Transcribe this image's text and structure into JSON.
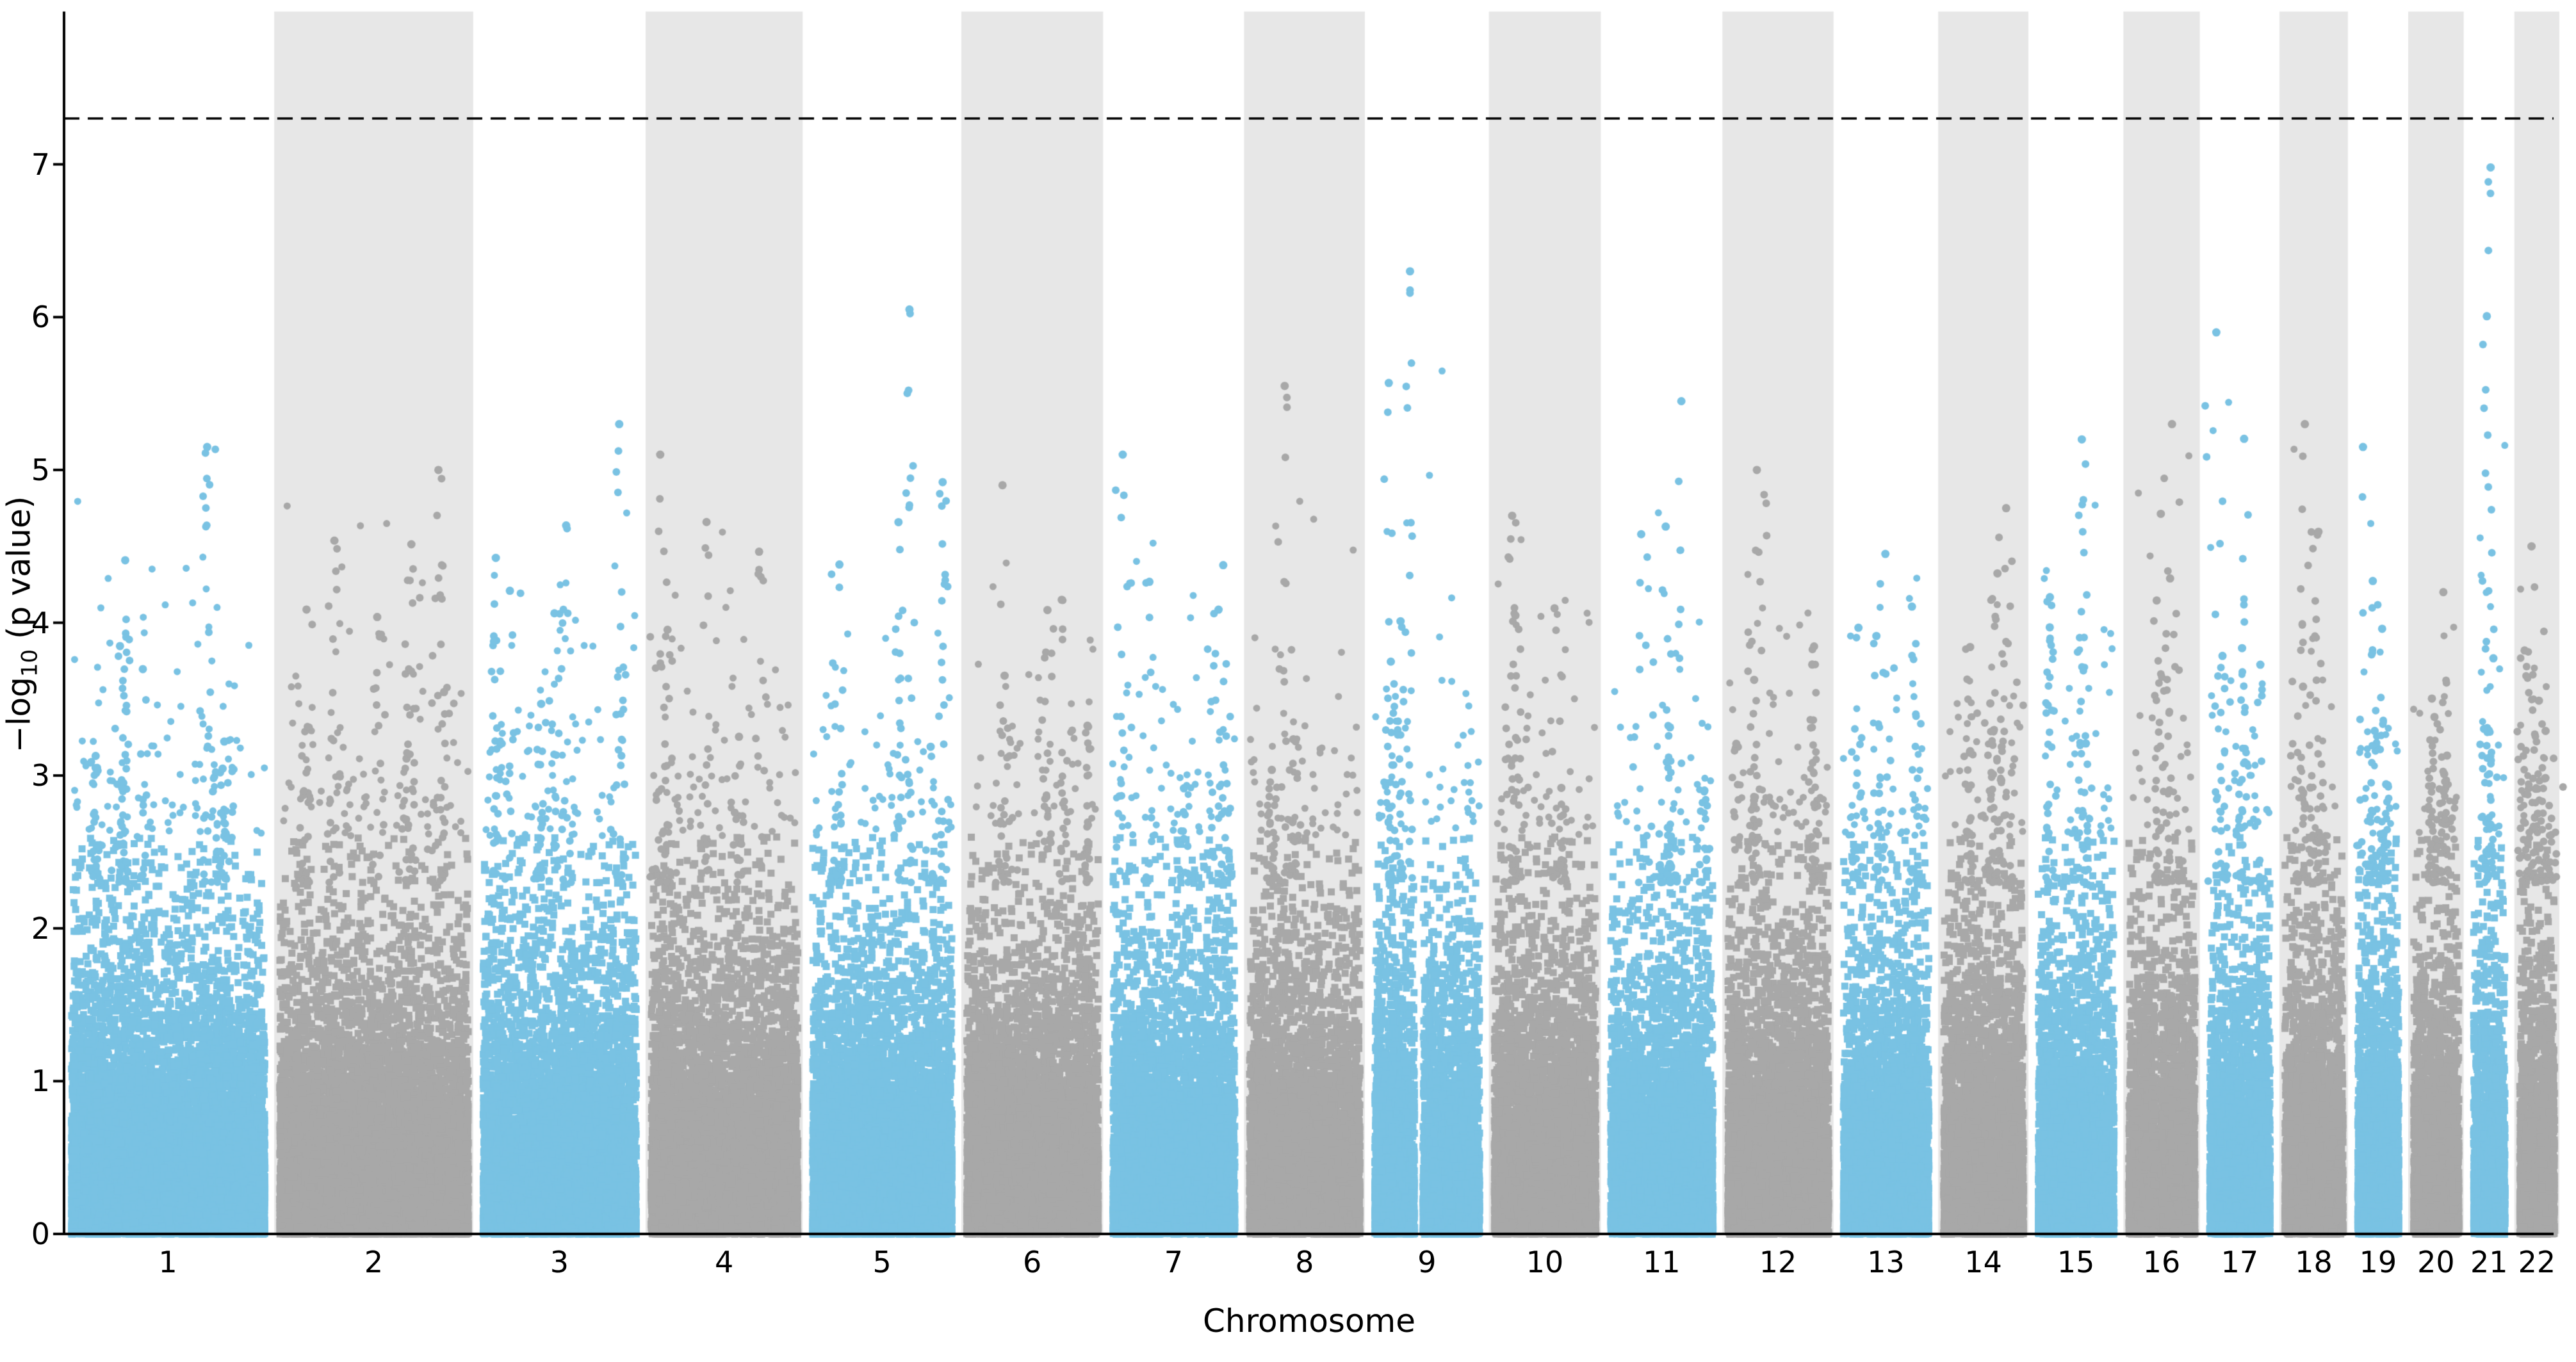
{
  "chart_data": {
    "type": "scatter",
    "variant": "manhattan-plot",
    "title": "",
    "xlabel": "Chromosome",
    "ylabel": "−log10 (p value)",
    "ylabel_parts": {
      "prefix": "−log",
      "sub": "10",
      "suffix": " (p value)"
    },
    "ylim": [
      0,
      8.0
    ],
    "yticks": [
      0,
      1,
      2,
      3,
      4,
      5,
      6,
      7
    ],
    "grid": false,
    "legend": "none",
    "significance_threshold": 7.3,
    "significance_line_style": "dashed",
    "seed": 1337,
    "point_density": 55,
    "tail_bulk_scale": 1.0,
    "tail_heavy_scale": 1.55,
    "tail_heavy_fraction": 0.25,
    "colors": {
      "odd_chromosome_points": "#79c2e3",
      "even_chromosome_points": "#a8a8a8",
      "band": "#e7e7e7",
      "threshold_line": "#000000",
      "axis": "#000000",
      "background": "#ffffff"
    },
    "chromosomes": [
      {
        "label": "1",
        "rel_width": 248,
        "max_neglog10p": 5.15
      },
      {
        "label": "2",
        "rel_width": 242,
        "max_neglog10p": 5.0
      },
      {
        "label": "3",
        "rel_width": 198,
        "max_neglog10p": 5.3
      },
      {
        "label": "4",
        "rel_width": 190,
        "max_neglog10p": 5.1
      },
      {
        "label": "5",
        "rel_width": 181,
        "max_neglog10p": 6.05
      },
      {
        "label": "6",
        "rel_width": 171,
        "max_neglog10p": 4.9
      },
      {
        "label": "7",
        "rel_width": 159,
        "max_neglog10p": 5.1
      },
      {
        "label": "8",
        "rel_width": 145,
        "max_neglog10p": 5.55
      },
      {
        "label": "9",
        "rel_width": 138,
        "max_neglog10p": 6.3,
        "gap": {
          "pos": 0.42,
          "width": 0.08
        }
      },
      {
        "label": "10",
        "rel_width": 134,
        "max_neglog10p": 4.7
      },
      {
        "label": "11",
        "rel_width": 135,
        "max_neglog10p": 5.45
      },
      {
        "label": "12",
        "rel_width": 133,
        "max_neglog10p": 5.0
      },
      {
        "label": "13",
        "rel_width": 114,
        "max_neglog10p": 4.45
      },
      {
        "label": "14",
        "rel_width": 107,
        "max_neglog10p": 4.75
      },
      {
        "label": "15",
        "rel_width": 102,
        "max_neglog10p": 5.2
      },
      {
        "label": "16",
        "rel_width": 90,
        "max_neglog10p": 5.3,
        "gap": {
          "pos": 0.45,
          "width": 0.06
        }
      },
      {
        "label": "17",
        "rel_width": 83,
        "max_neglog10p": 5.9
      },
      {
        "label": "18",
        "rel_width": 80,
        "max_neglog10p": 5.3
      },
      {
        "label": "19",
        "rel_width": 59,
        "max_neglog10p": 5.15
      },
      {
        "label": "20",
        "rel_width": 64,
        "max_neglog10p": 4.2
      },
      {
        "label": "21",
        "rel_width": 47,
        "max_neglog10p": 6.98
      },
      {
        "label": "22",
        "rel_width": 51,
        "max_neglog10p": 4.5
      }
    ]
  }
}
